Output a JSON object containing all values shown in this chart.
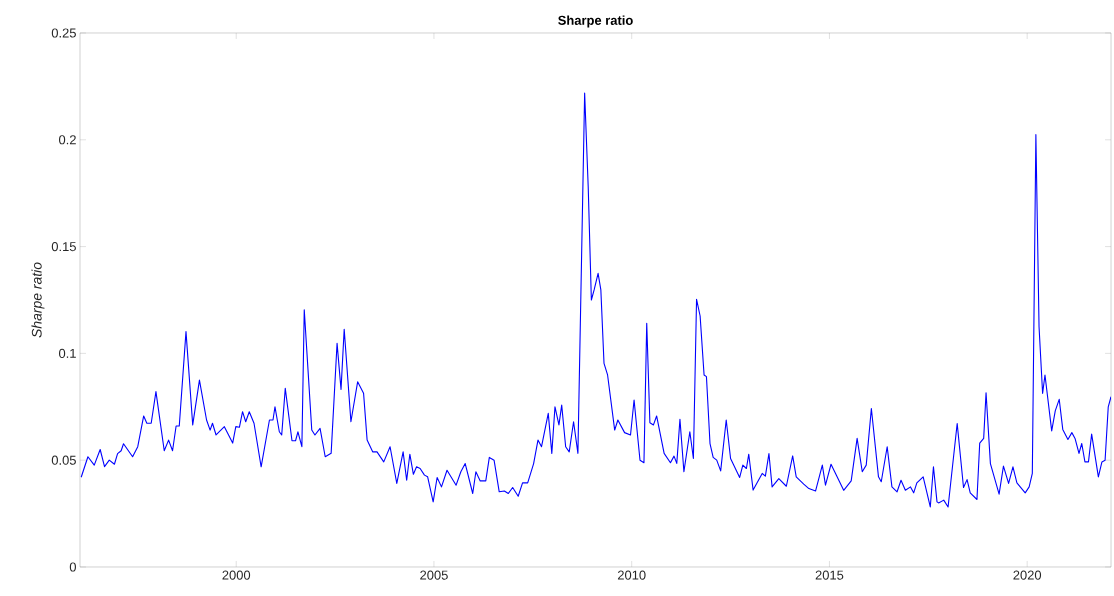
{
  "chart_data": {
    "type": "line",
    "title": "Sharpe ratio",
    "ylabel": "Sharpe ratio",
    "color": "#0000ff",
    "xlim": [
      1996.05,
      2022.12
    ],
    "ylim": [
      0,
      0.25
    ],
    "xticks": [
      2000,
      2005,
      2010,
      2015,
      2020
    ],
    "yticks": [
      0,
      0.05,
      0.1,
      0.15,
      0.2,
      0.25
    ],
    "x": [
      1996.08,
      1996.25,
      1996.41,
      1996.56,
      1996.67,
      1996.79,
      1996.92,
      1997.0,
      1997.09,
      1997.15,
      1997.38,
      1997.51,
      1997.66,
      1997.74,
      1997.85,
      1997.97,
      1998.18,
      1998.29,
      1998.39,
      1998.48,
      1998.56,
      1998.73,
      1998.9,
      1999.07,
      1999.25,
      1999.34,
      1999.4,
      1999.49,
      1999.7,
      1999.91,
      1999.99,
      2000.08,
      2000.16,
      2000.24,
      2000.33,
      2000.45,
      2000.63,
      2000.84,
      2000.93,
      2000.98,
      2001.09,
      2001.15,
      2001.24,
      2001.41,
      2001.5,
      2001.56,
      2001.66,
      2001.72,
      2001.91,
      2001.99,
      2002.12,
      2002.25,
      2002.4,
      2002.55,
      2002.65,
      2002.73,
      2002.9,
      2003.07,
      2003.22,
      2003.31,
      2003.45,
      2003.56,
      2003.73,
      2003.89,
      2004.06,
      2004.22,
      2004.31,
      2004.39,
      2004.48,
      2004.56,
      2004.65,
      2004.76,
      2004.84,
      2004.98,
      2005.08,
      2005.19,
      2005.33,
      2005.56,
      2005.68,
      2005.79,
      2005.98,
      2006.06,
      2006.17,
      2006.31,
      2006.4,
      2006.52,
      2006.65,
      2006.78,
      2006.88,
      2006.99,
      2007.13,
      2007.24,
      2007.37,
      2007.52,
      2007.63,
      2007.72,
      2007.89,
      2007.98,
      2008.06,
      2008.16,
      2008.23,
      2008.33,
      2008.42,
      2008.53,
      2008.64,
      2008.81,
      2008.9,
      2008.98,
      2009.05,
      2009.15,
      2009.22,
      2009.3,
      2009.39,
      2009.57,
      2009.65,
      2009.82,
      2009.97,
      2010.06,
      2010.21,
      2010.31,
      2010.38,
      2010.46,
      2010.55,
      2010.63,
      2010.82,
      2010.98,
      2011.07,
      2011.14,
      2011.22,
      2011.32,
      2011.47,
      2011.56,
      2011.64,
      2011.73,
      2011.83,
      2011.89,
      2011.98,
      2012.06,
      2012.15,
      2012.25,
      2012.39,
      2012.5,
      2012.73,
      2012.81,
      2012.9,
      2012.96,
      2013.07,
      2013.3,
      2013.38,
      2013.47,
      2013.55,
      2013.72,
      2013.91,
      2014.07,
      2014.16,
      2014.35,
      2014.48,
      2014.65,
      2014.82,
      2014.9,
      2015.04,
      2015.36,
      2015.55,
      2015.7,
      2015.83,
      2015.93,
      2016.06,
      2016.24,
      2016.31,
      2016.46,
      2016.58,
      2016.71,
      2016.81,
      2016.92,
      2017.05,
      2017.13,
      2017.21,
      2017.37,
      2017.55,
      2017.63,
      2017.72,
      2017.76,
      2017.89,
      2018.0,
      2018.23,
      2018.39,
      2018.48,
      2018.56,
      2018.73,
      2018.8,
      2018.9,
      2018.96,
      2019.07,
      2019.29,
      2019.4,
      2019.53,
      2019.64,
      2019.74,
      2019.95,
      2020.05,
      2020.13,
      2020.22,
      2020.3,
      2020.39,
      2020.45,
      2020.62,
      2020.71,
      2020.81,
      2020.9,
      2021.03,
      2021.13,
      2021.21,
      2021.31,
      2021.38,
      2021.46,
      2021.55,
      2021.63,
      2021.8,
      2021.89,
      2021.97,
      2022.05,
      2022.12
    ],
    "values": [
      0.042,
      0.0516,
      0.0477,
      0.055,
      0.047,
      0.05,
      0.0481,
      0.0531,
      0.0544,
      0.0577,
      0.0516,
      0.0563,
      0.0707,
      0.0673,
      0.0673,
      0.0821,
      0.0544,
      0.0594,
      0.0544,
      0.066,
      0.066,
      0.1102,
      0.0665,
      0.0875,
      0.0688,
      0.0641,
      0.0673,
      0.0618,
      0.0657,
      0.058,
      0.0657,
      0.0654,
      0.0727,
      0.068,
      0.0727,
      0.0673,
      0.0469,
      0.0688,
      0.0688,
      0.075,
      0.0633,
      0.0618,
      0.0836,
      0.0591,
      0.0591,
      0.0633,
      0.0563,
      0.1204,
      0.0641,
      0.0618,
      0.0649,
      0.0516,
      0.0532,
      0.1047,
      0.0831,
      0.1113,
      0.068,
      0.0867,
      0.0813,
      0.0594,
      0.0539,
      0.0539,
      0.0492,
      0.0563,
      0.0391,
      0.0539,
      0.0406,
      0.0528,
      0.0434,
      0.0469,
      0.0461,
      0.043,
      0.0422,
      0.0305,
      0.0419,
      0.0375,
      0.0453,
      0.0383,
      0.0446,
      0.0484,
      0.0344,
      0.0446,
      0.0403,
      0.0403,
      0.0513,
      0.05,
      0.0352,
      0.0356,
      0.0344,
      0.0372,
      0.0331,
      0.0394,
      0.0394,
      0.0484,
      0.0594,
      0.0563,
      0.0719,
      0.0532,
      0.075,
      0.0665,
      0.0758,
      0.0563,
      0.0539,
      0.068,
      0.0532,
      0.2219,
      0.1781,
      0.125,
      0.1297,
      0.1375,
      0.1297,
      0.0953,
      0.0899,
      0.0641,
      0.0688,
      0.0629,
      0.0618,
      0.0782,
      0.05,
      0.0488,
      0.1141,
      0.0675,
      0.0665,
      0.0707,
      0.0532,
      0.0488,
      0.0519,
      0.0485,
      0.0691,
      0.0446,
      0.0633,
      0.0508,
      0.1253,
      0.1175,
      0.0899,
      0.0891,
      0.0578,
      0.0513,
      0.05,
      0.045,
      0.0688,
      0.0508,
      0.0419,
      0.0477,
      0.0461,
      0.0528,
      0.036,
      0.0438,
      0.0425,
      0.0531,
      0.0375,
      0.0414,
      0.0378,
      0.052,
      0.0422,
      0.0388,
      0.0367,
      0.0356,
      0.0477,
      0.0383,
      0.0481,
      0.0359,
      0.0403,
      0.0602,
      0.0446,
      0.0477,
      0.0742,
      0.0422,
      0.0399,
      0.0563,
      0.0375,
      0.0352,
      0.0406,
      0.0359,
      0.0375,
      0.0347,
      0.0394,
      0.0422,
      0.0281,
      0.0469,
      0.0305,
      0.03,
      0.0313,
      0.0281,
      0.0672,
      0.0372,
      0.0409,
      0.0347,
      0.0316,
      0.058,
      0.0602,
      0.0816,
      0.0484,
      0.0341,
      0.0472,
      0.0391,
      0.0469,
      0.0394,
      0.0347,
      0.0375,
      0.0438,
      0.2024,
      0.1125,
      0.0813,
      0.0899,
      0.0637,
      0.0731,
      0.0785,
      0.0644,
      0.0597,
      0.0629,
      0.0602,
      0.0532,
      0.0578,
      0.0492,
      0.0492,
      0.0622,
      0.0422,
      0.0492,
      0.05,
      0.075,
      0.0797
    ]
  }
}
